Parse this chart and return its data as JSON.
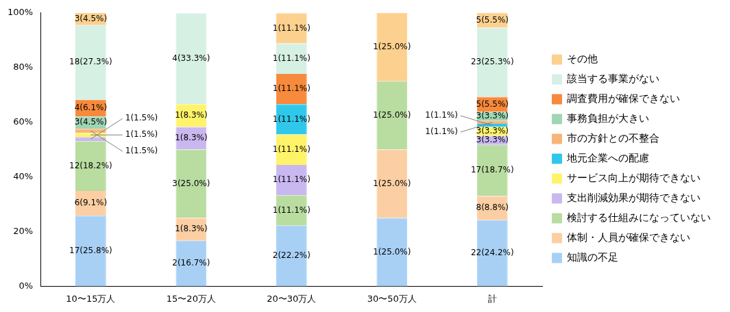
{
  "chart_data": {
    "type": "bar",
    "stacked": true,
    "categories": [
      "10〜15万人",
      "15〜20万人",
      "20〜30万人",
      "30〜50万人",
      "計"
    ],
    "ylim": [
      0,
      100
    ],
    "yticks": [
      {
        "value": 0,
        "label": "0%"
      },
      {
        "value": 20,
        "label": "20%"
      },
      {
        "value": 40,
        "label": "40%"
      },
      {
        "value": 60,
        "label": "60%"
      },
      {
        "value": 80,
        "label": "80%"
      },
      {
        "value": 100,
        "label": "100%"
      }
    ],
    "grid": false,
    "legend": "right",
    "series": [
      {
        "name": "知識の不足",
        "color": "#a8d0f5",
        "values": [
          25.8,
          16.7,
          22.2,
          25.0,
          24.2
        ],
        "value_labels": [
          "17(25.8%)",
          "2(16.7%)",
          "2(22.2%)",
          "1(25.0%)",
          "22(24.2%)"
        ]
      },
      {
        "name": "体制・人員が確保できない",
        "color": "#fbcfa3",
        "values": [
          9.1,
          8.3,
          null,
          25.0,
          8.8
        ],
        "value_labels": [
          "6(9.1%)",
          "1(8.3%)",
          null,
          "1(25.0%)",
          "8(8.8%)"
        ]
      },
      {
        "name": "検討する仕組みになっていない",
        "color": "#b9dca0",
        "values": [
          18.2,
          25.0,
          11.1,
          25.0,
          18.7
        ],
        "value_labels": [
          "12(18.2%)",
          "3(25.0%)",
          "1(11.1%)",
          "1(25.0%)",
          "17(18.7%)"
        ]
      },
      {
        "name": "支出削減効果が期待できない",
        "color": "#c9b8f0",
        "values": [
          1.5,
          8.3,
          11.1,
          null,
          3.3
        ],
        "value_labels": [
          "1(1.5%)",
          "1(8.3%)",
          "1(11.1%)",
          null,
          "3(3.3%)"
        ]
      },
      {
        "name": "サービス向上が期待できない",
        "color": "#fff36a",
        "values": [
          1.5,
          8.3,
          11.1,
          null,
          3.3
        ],
        "value_labels": [
          "1(1.5%)",
          "1(8.3%)",
          "1(11.1%)",
          null,
          "3(3.3%)"
        ]
      },
      {
        "name": "地元企業への配慮",
        "color": "#30c8ea",
        "values": [
          null,
          null,
          11.1,
          null,
          1.1
        ],
        "value_labels": [
          null,
          null,
          "1(11.1%)",
          null,
          "1(1.1%)"
        ]
      },
      {
        "name": "市の方針との不整合",
        "color": "#f7b57a",
        "values": [
          1.5,
          null,
          null,
          null,
          1.1
        ],
        "value_labels": [
          "1(1.5%)",
          null,
          null,
          null,
          "1(1.1%)"
        ]
      },
      {
        "name": "事務負担が大きい",
        "color": "#9fd6b4",
        "values": [
          4.5,
          null,
          null,
          null,
          3.3
        ],
        "value_labels": [
          "3(4.5%)",
          null,
          null,
          null,
          "3(3.3%)"
        ]
      },
      {
        "name": "調査費用が確保できない",
        "color": "#f78a3c",
        "values": [
          6.1,
          null,
          11.1,
          null,
          5.5
        ],
        "value_labels": [
          "4(6.1%)",
          null,
          "1(11.1%)",
          null,
          "5(5.5%)"
        ]
      },
      {
        "name": "該当する事業がない",
        "color": "#d6f0e3",
        "values": [
          27.3,
          33.3,
          11.1,
          null,
          25.3
        ],
        "value_labels": [
          "18(27.3%)",
          "4(33.3%)",
          "1(11.1%)",
          null,
          "23(25.3%)"
        ]
      },
      {
        "name": "その他",
        "color": "#fcd08e",
        "values": [
          4.5,
          null,
          11.1,
          25.0,
          5.5
        ],
        "value_labels": [
          "3(4.5%)",
          null,
          "1(11.1%)",
          "1(25.0%)",
          "5(5.5%)"
        ]
      }
    ]
  }
}
